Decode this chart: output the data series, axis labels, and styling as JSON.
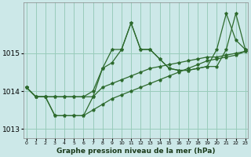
{
  "background_color": "#cce8e8",
  "grid_color": "#99ccbb",
  "line_color": "#2d6a2d",
  "title": "Graphe pression niveau de la mer (hPa)",
  "ylim": [
    1012.75,
    1016.35
  ],
  "xlim": [
    -0.3,
    23.3
  ],
  "yticks": [
    1013,
    1014,
    1015
  ],
  "xticks": [
    0,
    1,
    2,
    3,
    4,
    5,
    6,
    7,
    8,
    9,
    10,
    11,
    12,
    13,
    14,
    15,
    16,
    17,
    18,
    19,
    20,
    21,
    22,
    23
  ],
  "series": [
    {
      "y": [
        1014.1,
        1013.85,
        1013.85,
        1013.85,
        1013.85,
        1013.85,
        1013.85,
        1013.85,
        1014.6,
        1015.1,
        1015.1,
        1015.8,
        1015.1,
        1015.1,
        1014.85,
        1014.6,
        1014.55,
        1014.55,
        1014.6,
        1014.65,
        1015.1,
        1016.05,
        1015.35,
        1015.1
      ],
      "no_marker_start": 0
    },
    {
      "y": [
        1014.1,
        1013.85,
        1013.85,
        1013.85,
        1013.85,
        1013.85,
        1013.85,
        1014.0,
        1014.6,
        1014.75,
        1015.1,
        1015.8,
        1015.1,
        1015.1,
        1014.85,
        1014.6,
        1014.55,
        1014.55,
        1014.6,
        1014.65,
        1014.65,
        1015.1,
        1016.05,
        1015.1
      ],
      "has_markers": true
    },
    {
      "y": [
        1014.1,
        1013.85,
        1013.85,
        1013.35,
        1013.35,
        1013.35,
        1013.35,
        1013.85,
        1014.1,
        1014.2,
        1014.3,
        1014.4,
        1014.5,
        1014.6,
        1014.65,
        1014.7,
        1014.75,
        1014.8,
        1014.85,
        1014.9,
        1014.9,
        1014.95,
        1015.0,
        1015.05
      ],
      "has_markers": true
    },
    {
      "y": [
        1014.1,
        1013.85,
        1013.85,
        1013.35,
        1013.35,
        1013.35,
        1013.35,
        1013.5,
        1013.65,
        1013.8,
        1013.9,
        1014.0,
        1014.1,
        1014.2,
        1014.3,
        1014.4,
        1014.5,
        1014.6,
        1014.7,
        1014.8,
        1014.85,
        1014.9,
        1014.95,
        1015.05
      ],
      "has_markers": false
    }
  ]
}
